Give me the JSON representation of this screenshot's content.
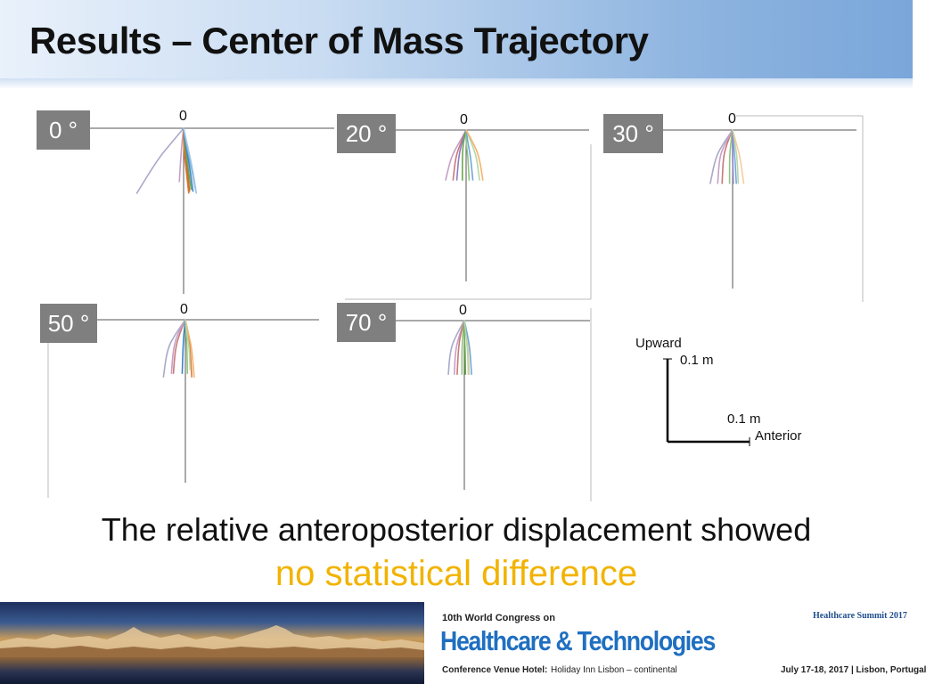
{
  "title": "Results – Center of Mass Trajectory",
  "chart_data": [
    {
      "type": "line",
      "angle_label": "0 °",
      "origin_label": "0",
      "series": [
        {
          "color": "#a9a9c9",
          "x": [
            0,
            -0.03,
            -0.06,
            -0.11
          ],
          "y": [
            0,
            -0.04,
            -0.08,
            -0.17
          ]
        },
        {
          "color": "#c6a0c6",
          "x": [
            0,
            -0.005,
            -0.008,
            -0.01
          ],
          "y": [
            0,
            -0.05,
            -0.1,
            -0.14
          ]
        },
        {
          "color": "#e07b39",
          "x": [
            0,
            0.0,
            0.005,
            0.012
          ],
          "y": [
            0,
            -0.05,
            -0.1,
            -0.17
          ]
        },
        {
          "color": "#c56a2a",
          "x": [
            0,
            0.003,
            0.008,
            0.014
          ],
          "y": [
            0,
            -0.05,
            -0.1,
            -0.165
          ]
        },
        {
          "color": "#6aa84f",
          "x": [
            0,
            0.004,
            0.01,
            0.018
          ],
          "y": [
            0,
            -0.05,
            -0.1,
            -0.16
          ]
        },
        {
          "color": "#3d85c6",
          "x": [
            0,
            0.006,
            0.014,
            0.022
          ],
          "y": [
            0,
            -0.05,
            -0.1,
            -0.165
          ]
        },
        {
          "color": "#6fa8dc",
          "x": [
            0,
            0.008,
            0.018,
            0.028
          ],
          "y": [
            0,
            -0.05,
            -0.1,
            -0.16
          ]
        },
        {
          "color": "#9fc5e8",
          "x": [
            0,
            0.01,
            0.02,
            0.03
          ],
          "y": [
            0,
            -0.05,
            -0.1,
            -0.17
          ]
        }
      ]
    },
    {
      "type": "line",
      "angle_label": "20 °",
      "origin_label": "0",
      "series": [
        {
          "color": "#c6a0c6",
          "x": [
            0,
            -0.02,
            -0.04,
            -0.055
          ],
          "y": [
            0,
            -0.04,
            -0.08,
            -0.15
          ]
        },
        {
          "color": "#c9797a",
          "x": [
            0,
            -0.015,
            -0.028,
            -0.035
          ],
          "y": [
            0,
            -0.04,
            -0.08,
            -0.15
          ]
        },
        {
          "color": "#8e7cc3",
          "x": [
            0,
            -0.012,
            -0.02,
            -0.025
          ],
          "y": [
            0,
            -0.04,
            -0.08,
            -0.15
          ]
        },
        {
          "color": "#6aa84f",
          "x": [
            0,
            -0.008,
            -0.01,
            -0.01
          ],
          "y": [
            0,
            -0.04,
            -0.08,
            -0.15
          ]
        },
        {
          "color": "#93c47d",
          "x": [
            0,
            0.0,
            0.005,
            0.008
          ],
          "y": [
            0,
            -0.04,
            -0.08,
            -0.15
          ]
        },
        {
          "color": "#6fa8dc",
          "x": [
            0,
            0.005,
            0.012,
            0.018
          ],
          "y": [
            0,
            -0.04,
            -0.08,
            -0.15
          ]
        },
        {
          "color": "#b6d7a8",
          "x": [
            0,
            0.015,
            0.028,
            0.036
          ],
          "y": [
            0,
            -0.04,
            -0.08,
            -0.15
          ]
        },
        {
          "color": "#f6b26b",
          "x": [
            0,
            0.02,
            0.035,
            0.045
          ],
          "y": [
            0,
            -0.04,
            -0.08,
            -0.15
          ]
        }
      ]
    },
    {
      "type": "line",
      "angle_label": "30 °",
      "origin_label": "0",
      "series": [
        {
          "color": "#a9a9c9",
          "x": [
            0,
            -0.025,
            -0.045,
            -0.06
          ],
          "y": [
            0,
            -0.04,
            -0.08,
            -0.16
          ]
        },
        {
          "color": "#c9797a",
          "x": [
            0,
            -0.015,
            -0.025,
            -0.028
          ],
          "y": [
            0,
            -0.04,
            -0.08,
            -0.16
          ]
        },
        {
          "color": "#c6a0c6",
          "x": [
            0,
            -0.02,
            -0.035,
            -0.04
          ],
          "y": [
            0,
            -0.04,
            -0.08,
            -0.16
          ]
        },
        {
          "color": "#93c47d",
          "x": [
            0,
            -0.005,
            -0.008,
            -0.008
          ],
          "y": [
            0,
            -0.04,
            -0.08,
            -0.16
          ]
        },
        {
          "color": "#6fa8dc",
          "x": [
            0,
            0.002,
            0.006,
            0.01
          ],
          "y": [
            0,
            -0.04,
            -0.08,
            -0.16
          ]
        },
        {
          "color": "#8e7cc3",
          "x": [
            0,
            0.0,
            0.0,
            0.002
          ],
          "y": [
            0,
            -0.04,
            -0.08,
            -0.16
          ]
        },
        {
          "color": "#f9cb9c",
          "x": [
            0,
            0.01,
            0.02,
            0.03
          ],
          "y": [
            0,
            -0.04,
            -0.08,
            -0.16
          ]
        },
        {
          "color": "#b6d7a8",
          "x": [
            0,
            0.006,
            0.012,
            0.015
          ],
          "y": [
            0,
            -0.04,
            -0.08,
            -0.16
          ]
        }
      ]
    },
    {
      "type": "line",
      "angle_label": "50 °",
      "origin_label": "0",
      "series": [
        {
          "color": "#a9a9c9",
          "x": [
            0,
            -0.025,
            -0.045,
            -0.055
          ],
          "y": [
            0,
            -0.04,
            -0.08,
            -0.16
          ]
        },
        {
          "color": "#c9797a",
          "x": [
            0,
            -0.015,
            -0.025,
            -0.03
          ],
          "y": [
            0,
            -0.04,
            -0.08,
            -0.15
          ]
        },
        {
          "color": "#c6a0c6",
          "x": [
            0,
            -0.02,
            -0.03,
            -0.035
          ],
          "y": [
            0,
            -0.04,
            -0.08,
            -0.15
          ]
        },
        {
          "color": "#3d85c6",
          "x": [
            0,
            -0.004,
            -0.006,
            -0.008
          ],
          "y": [
            0,
            -0.04,
            -0.08,
            -0.15
          ]
        },
        {
          "color": "#93c47d",
          "x": [
            0,
            0.002,
            0.004,
            0.005
          ],
          "y": [
            0,
            -0.04,
            -0.08,
            -0.15
          ]
        },
        {
          "color": "#e07b39",
          "x": [
            0,
            0.006,
            0.012,
            0.016
          ],
          "y": [
            0,
            -0.04,
            -0.08,
            -0.16
          ]
        },
        {
          "color": "#f6b26b",
          "x": [
            0,
            0.008,
            0.016,
            0.022
          ],
          "y": [
            0,
            -0.04,
            -0.08,
            -0.16
          ]
        },
        {
          "color": "#b6d7a8",
          "x": [
            0,
            0.004,
            0.01,
            0.012
          ],
          "y": [
            0,
            -0.04,
            -0.08,
            -0.14
          ]
        }
      ]
    },
    {
      "type": "line",
      "angle_label": "70 °",
      "origin_label": "0",
      "series": [
        {
          "color": "#a9a9c9",
          "x": [
            0,
            -0.02,
            -0.035,
            -0.04
          ],
          "y": [
            0,
            -0.04,
            -0.08,
            -0.15
          ]
        },
        {
          "color": "#c6a0c6",
          "x": [
            0,
            -0.012,
            -0.022,
            -0.025
          ],
          "y": [
            0,
            -0.04,
            -0.08,
            -0.15
          ]
        },
        {
          "color": "#c9797a",
          "x": [
            0,
            -0.01,
            -0.015,
            -0.018
          ],
          "y": [
            0,
            -0.04,
            -0.08,
            -0.15
          ]
        },
        {
          "color": "#93c47d",
          "x": [
            0,
            -0.004,
            -0.006,
            -0.006
          ],
          "y": [
            0,
            -0.04,
            -0.08,
            -0.15
          ]
        },
        {
          "color": "#6aa84f",
          "x": [
            0,
            0.0,
            0.002,
            0.003
          ],
          "y": [
            0,
            -0.04,
            -0.08,
            -0.15
          ]
        },
        {
          "color": "#f9cb9c",
          "x": [
            0,
            0.006,
            0.01,
            0.012
          ],
          "y": [
            0,
            -0.04,
            -0.08,
            -0.15
          ]
        },
        {
          "color": "#6fa8dc",
          "x": [
            0,
            0.008,
            0.014,
            0.018
          ],
          "y": [
            0,
            -0.04,
            -0.08,
            -0.15
          ]
        },
        {
          "color": "#b6d7a8",
          "x": [
            0,
            0.004,
            0.008,
            0.01
          ],
          "y": [
            0,
            -0.04,
            -0.08,
            -0.15
          ]
        }
      ]
    }
  ],
  "scale_legend": {
    "upward_label": "Upward",
    "vertical_length": "0.1 m",
    "horizontal_length": "0.1 m",
    "anterior_label": "Anterior"
  },
  "conclusion": {
    "line1": "The relative anteroposterior displacement showed",
    "line2": "no statistical difference",
    "highlight_color": "#f2b300"
  },
  "footer": {
    "congress_prefix": "10th World Congress on",
    "congress_name": "Healthcare & Technologies",
    "venue_label": "Conference Venue Hotel:",
    "venue_name": "Holiday Inn Lisbon – continental",
    "summit": "Healthcare Summit 2017",
    "dates_location": "July 17-18, 2017 | Lisbon, Portugal"
  }
}
